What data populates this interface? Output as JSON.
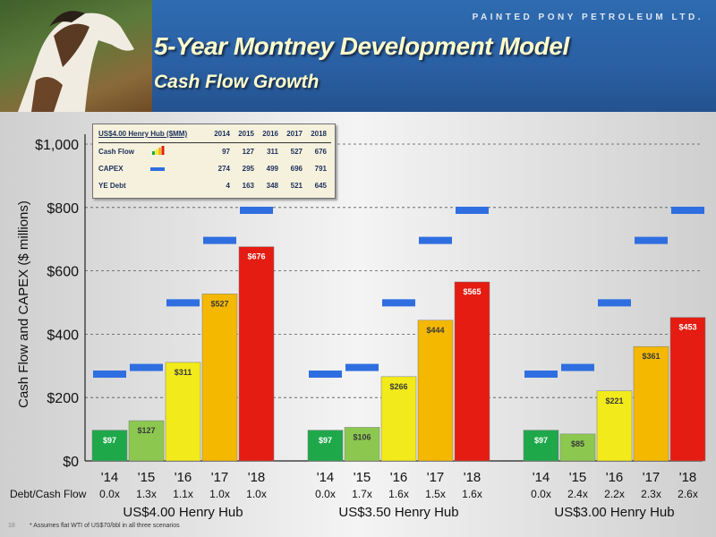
{
  "header": {
    "company": "PAINTED PONY PETROLEUM LTD.",
    "title": "5-Year Montney Development Model",
    "subtitle": "Cash Flow Growth"
  },
  "table": {
    "title": "US$4.00 Henry Hub ($MM)",
    "years": [
      "2014",
      "2015",
      "2016",
      "2017",
      "2018"
    ],
    "rows": [
      {
        "label": "Cash Flow",
        "values": [
          "97",
          "127",
          "311",
          "527",
          "676"
        ]
      },
      {
        "label": "CAPEX",
        "values": [
          "274",
          "295",
          "499",
          "696",
          "791"
        ]
      },
      {
        "label": "YE Debt",
        "values": [
          "4",
          "163",
          "348",
          "521",
          "645"
        ]
      }
    ]
  },
  "debt_label": "Debt/Cash Flow",
  "footnote": "* Assumes flat WTI of US$70/bbl in all three scenarios",
  "page_number": "18",
  "colors": {
    "bars": [
      "#1fa84a",
      "#8cc850",
      "#f2ea1a",
      "#f5b800",
      "#e41c12"
    ],
    "capex": "#2f6ee0"
  },
  "chart_data": {
    "type": "bar",
    "ylabel": "Cash Flow and CAPEX ($ millions)",
    "ylim": [
      0,
      1000
    ],
    "yticks": [
      "$0",
      "$200",
      "$400",
      "$600",
      "$800",
      "$1,000"
    ],
    "grid": "horizontal dashed",
    "groups": [
      {
        "name": "US$4.00 Henry Hub",
        "categories": [
          "'14",
          "'15",
          "'16",
          "'17",
          "'18"
        ],
        "cash_flow": [
          97,
          127,
          311,
          527,
          676
        ],
        "cash_flow_labels": [
          "$97",
          "$127",
          "$311",
          "$527",
          "$676"
        ],
        "capex": [
          274,
          295,
          499,
          696,
          791
        ],
        "debt_cash_flow": [
          "0.0x",
          "1.3x",
          "1.1x",
          "1.0x",
          "1.0x"
        ]
      },
      {
        "name": "US$3.50 Henry Hub",
        "categories": [
          "'14",
          "'15",
          "'16",
          "'17",
          "'18"
        ],
        "cash_flow": [
          97,
          106,
          266,
          444,
          565
        ],
        "cash_flow_labels": [
          "$97",
          "$106",
          "$266",
          "$444",
          "$565"
        ],
        "capex": [
          274,
          295,
          499,
          696,
          791
        ],
        "debt_cash_flow": [
          "0.0x",
          "1.7x",
          "1.6x",
          "1.5x",
          "1.6x"
        ]
      },
      {
        "name": "US$3.00 Henry Hub",
        "categories": [
          "'14",
          "'15",
          "'16",
          "'17",
          "'18"
        ],
        "cash_flow": [
          97,
          85,
          221,
          361,
          453
        ],
        "cash_flow_labels": [
          "$97",
          "$85",
          "$221",
          "$361",
          "$453"
        ],
        "capex": [
          274,
          295,
          499,
          696,
          791
        ],
        "debt_cash_flow": [
          "0.0x",
          "2.4x",
          "2.2x",
          "2.3x",
          "2.6x"
        ]
      }
    ]
  }
}
